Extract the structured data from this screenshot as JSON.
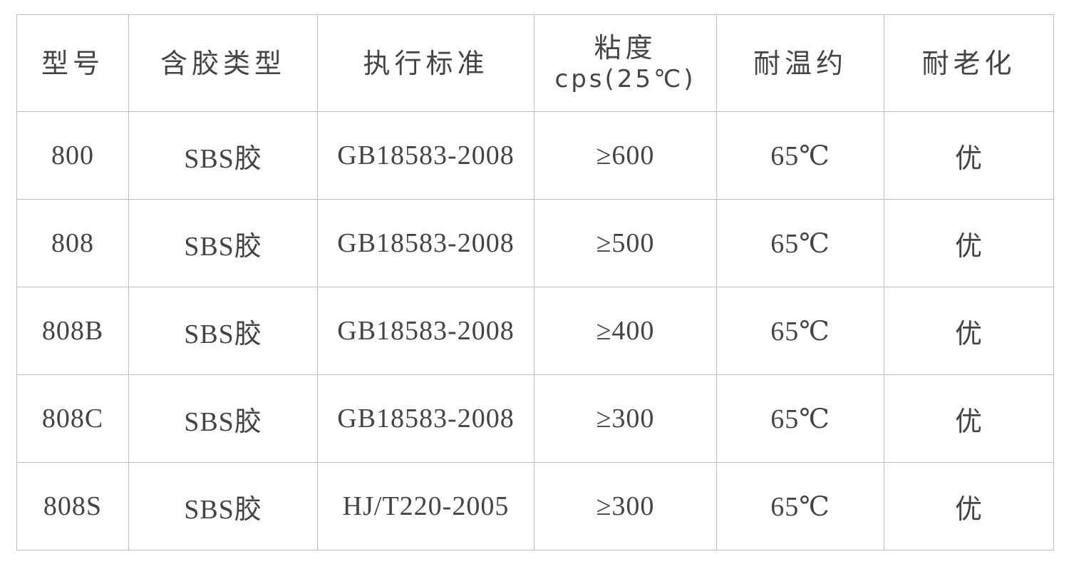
{
  "table": {
    "headers": [
      {
        "label": "型号"
      },
      {
        "label": "含胶类型"
      },
      {
        "label": "执行标准"
      },
      {
        "label": "粘度",
        "sublabel": "cps(25℃)"
      },
      {
        "label": "耐温约"
      },
      {
        "label": "耐老化"
      }
    ],
    "rows": [
      [
        "800",
        "SBS胶",
        "GB18583-2008",
        "≥600",
        "65℃",
        "优"
      ],
      [
        "808",
        "SBS胶",
        "GB18583-2008",
        "≥500",
        "65℃",
        "优"
      ],
      [
        "808B",
        "SBS胶",
        "GB18583-2008",
        "≥400",
        "65℃",
        "优"
      ],
      [
        "808C",
        "SBS胶",
        "GB18583-2008",
        "≥300",
        "65℃",
        "优"
      ],
      [
        "808S",
        "SBS胶",
        "HJ/T220-2005",
        "≥300",
        "65℃",
        "优"
      ]
    ]
  },
  "colors": {
    "text": "#444444",
    "border": "#bdbdbd"
  }
}
